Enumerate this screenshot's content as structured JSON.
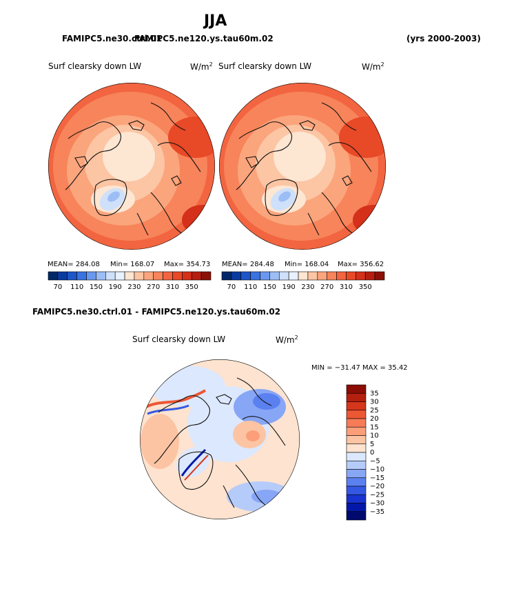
{
  "title": "JJA",
  "cases": {
    "left": "FAMIPC5.ne30.ctrl.01",
    "overlap": "FAMIPC5.ne120.ys.tau60m.02",
    "years": "(yrs 2000-2003)"
  },
  "colors": {
    "warm": [
      "#fde6d2",
      "#fcc5a3",
      "#fba57d",
      "#f7845a",
      "#f26540",
      "#e84927",
      "#d4301a",
      "#b61f10",
      "#8c1007"
    ],
    "cold": [
      "#002868",
      "#0a3aa0",
      "#1e56c8",
      "#3a73e0",
      "#6a98ee",
      "#9dbdf5",
      "#cfe0fa",
      "#e8f1fd"
    ],
    "diff": [
      "#000a6e",
      "#0318a9",
      "#1933cf",
      "#3558e3",
      "#5b80f0",
      "#88a6f6",
      "#b5cbfa",
      "#dce8fd",
      "#fde3d0",
      "#fcc4a3",
      "#fb9f7a",
      "#f67b56",
      "#ec5734",
      "#d6361c",
      "#b51f0e",
      "#8b0d04"
    ]
  },
  "chart_data": [
    {
      "type": "heatmap",
      "projection": "north polar stereographic",
      "title": "Surf clearsky down LW",
      "units": "W/m",
      "units_exp": "2",
      "stats": {
        "mean_label": "MEAN= 284.08",
        "min_label": "Min= 168.07",
        "max_label": "Max= 354.73"
      },
      "mean": 284.08,
      "min": 168.07,
      "max": 354.73,
      "colorbar_ticks": [
        "70",
        "110",
        "150",
        "190",
        "230",
        "270",
        "310",
        "350"
      ]
    },
    {
      "type": "heatmap",
      "projection": "north polar stereographic",
      "title": "Surf clearsky down LW",
      "units": "W/m",
      "units_exp": "2",
      "stats": {
        "mean_label": "MEAN= 284.48",
        "min_label": "Min= 168.04",
        "max_label": "Max= 356.62"
      },
      "mean": 284.48,
      "min": 168.04,
      "max": 356.62,
      "colorbar_ticks": [
        "70",
        "110",
        "150",
        "190",
        "230",
        "270",
        "310",
        "350"
      ]
    },
    {
      "type": "heatmap",
      "projection": "north polar stereographic",
      "heading": "FAMIPC5.ne30.ctrl.01 - FAMIPC5.ne120.ys.tau60m.02",
      "title": "Surf clearsky down LW",
      "units": "W/m",
      "units_exp": "2",
      "minmax_label": "MIN = −31.47  MAX =  35.42",
      "min": -31.47,
      "max": 35.42,
      "colorbar_ticks": [
        "35",
        "30",
        "25",
        "20",
        "15",
        "10",
        "5",
        "0",
        "−5",
        "−10",
        "−15",
        "−20",
        "−25",
        "−30",
        "−35"
      ]
    }
  ]
}
